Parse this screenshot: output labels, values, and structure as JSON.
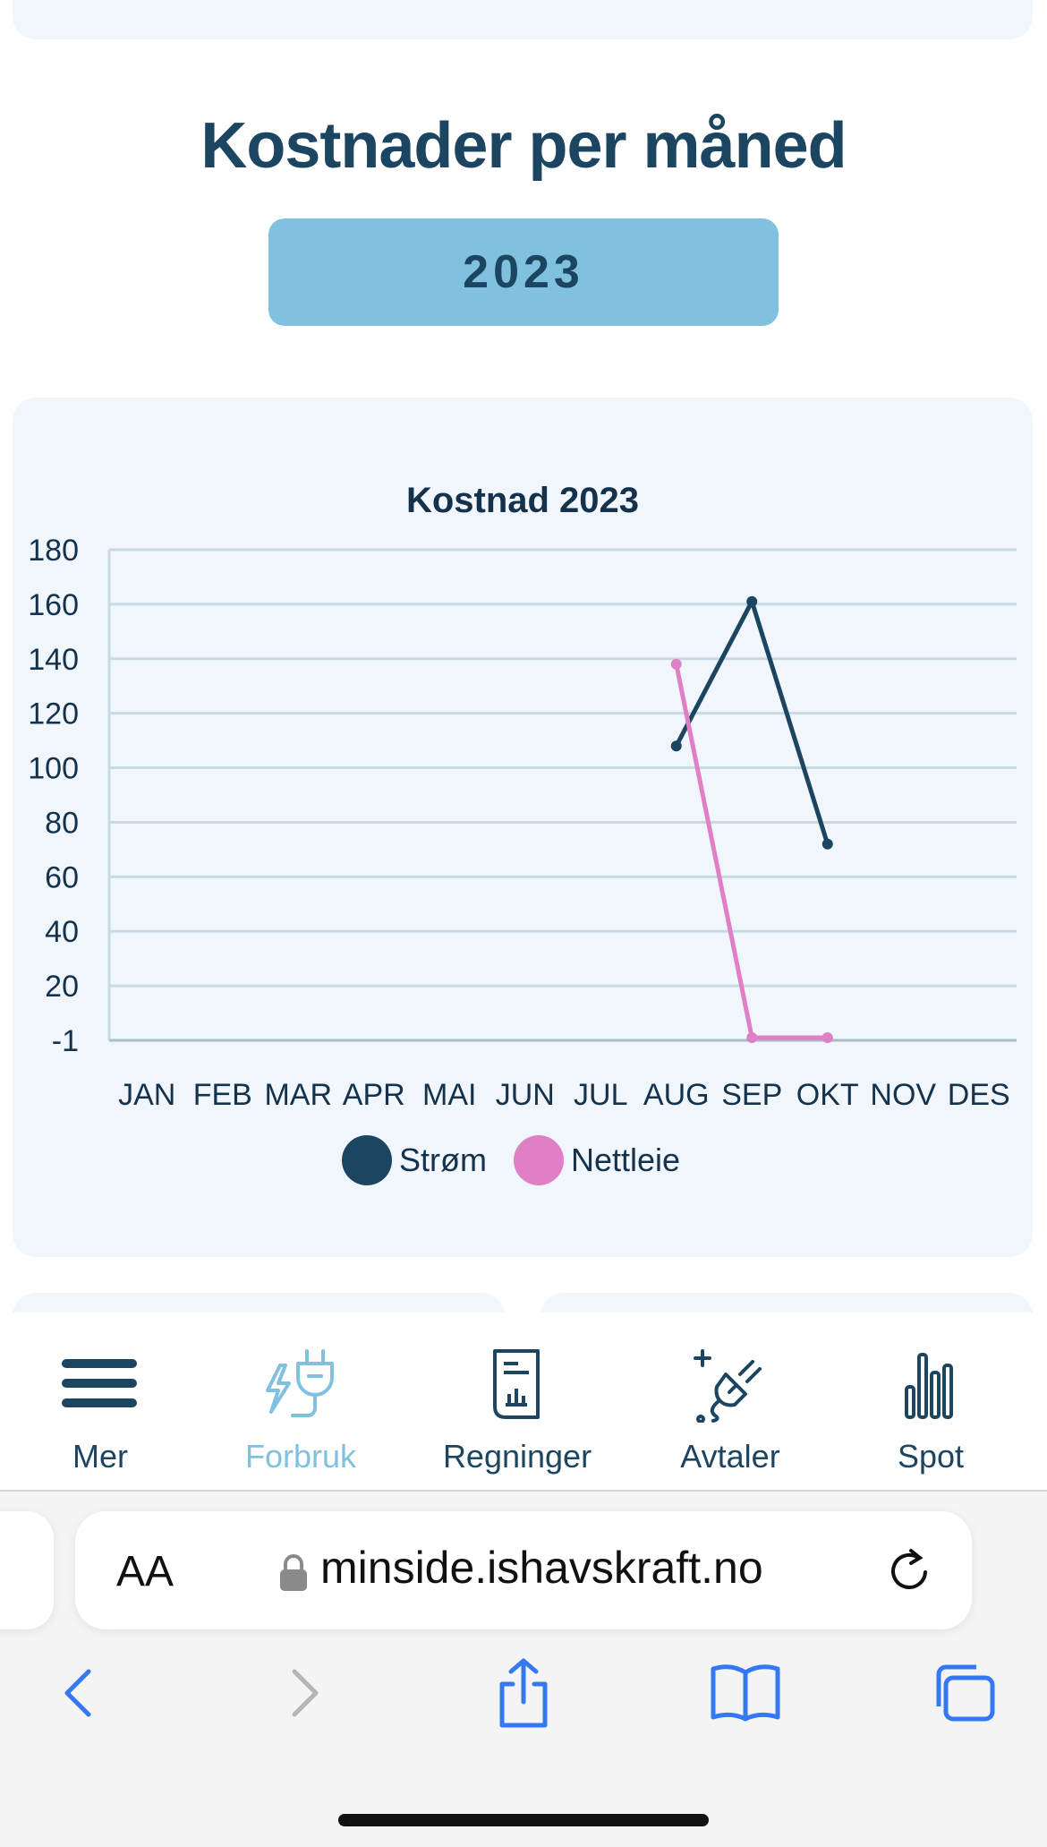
{
  "header": {
    "title": "Kostnader per måned",
    "year_button": "2023"
  },
  "chart_data": {
    "type": "line",
    "title": "Kostnad 2023",
    "categories": [
      "JAN",
      "FEB",
      "MAR",
      "APR",
      "MAI",
      "JUN",
      "JUL",
      "AUG",
      "SEP",
      "OKT",
      "NOV",
      "DES"
    ],
    "y_ticks": [
      "180",
      "160",
      "140",
      "120",
      "100",
      "80",
      "60",
      "40",
      "20",
      "-1"
    ],
    "ylim": [
      -1,
      180
    ],
    "grid": true,
    "legend_position": "bottom",
    "series": [
      {
        "name": "Strøm",
        "color": "#1c4561",
        "values": [
          null,
          null,
          null,
          null,
          null,
          null,
          null,
          108,
          161,
          72,
          null,
          null
        ]
      },
      {
        "name": "Nettleie",
        "color": "#e07fc6",
        "values": [
          null,
          null,
          null,
          null,
          null,
          null,
          null,
          138,
          0,
          0,
          null,
          null
        ]
      }
    ]
  },
  "bottom_nav": {
    "items": [
      {
        "label": "Mer",
        "icon": "menu-icon",
        "active": false
      },
      {
        "label": "Forbruk",
        "icon": "plug-lightning-icon",
        "active": true
      },
      {
        "label": "Regninger",
        "icon": "invoice-icon",
        "active": false
      },
      {
        "label": "Avtaler",
        "icon": "contract-plug-icon",
        "active": false
      },
      {
        "label": "Spot",
        "icon": "bar-chart-icon",
        "active": false
      }
    ]
  },
  "browser": {
    "text_size_label": "AA",
    "url": "minside.ishavskraft.no"
  }
}
